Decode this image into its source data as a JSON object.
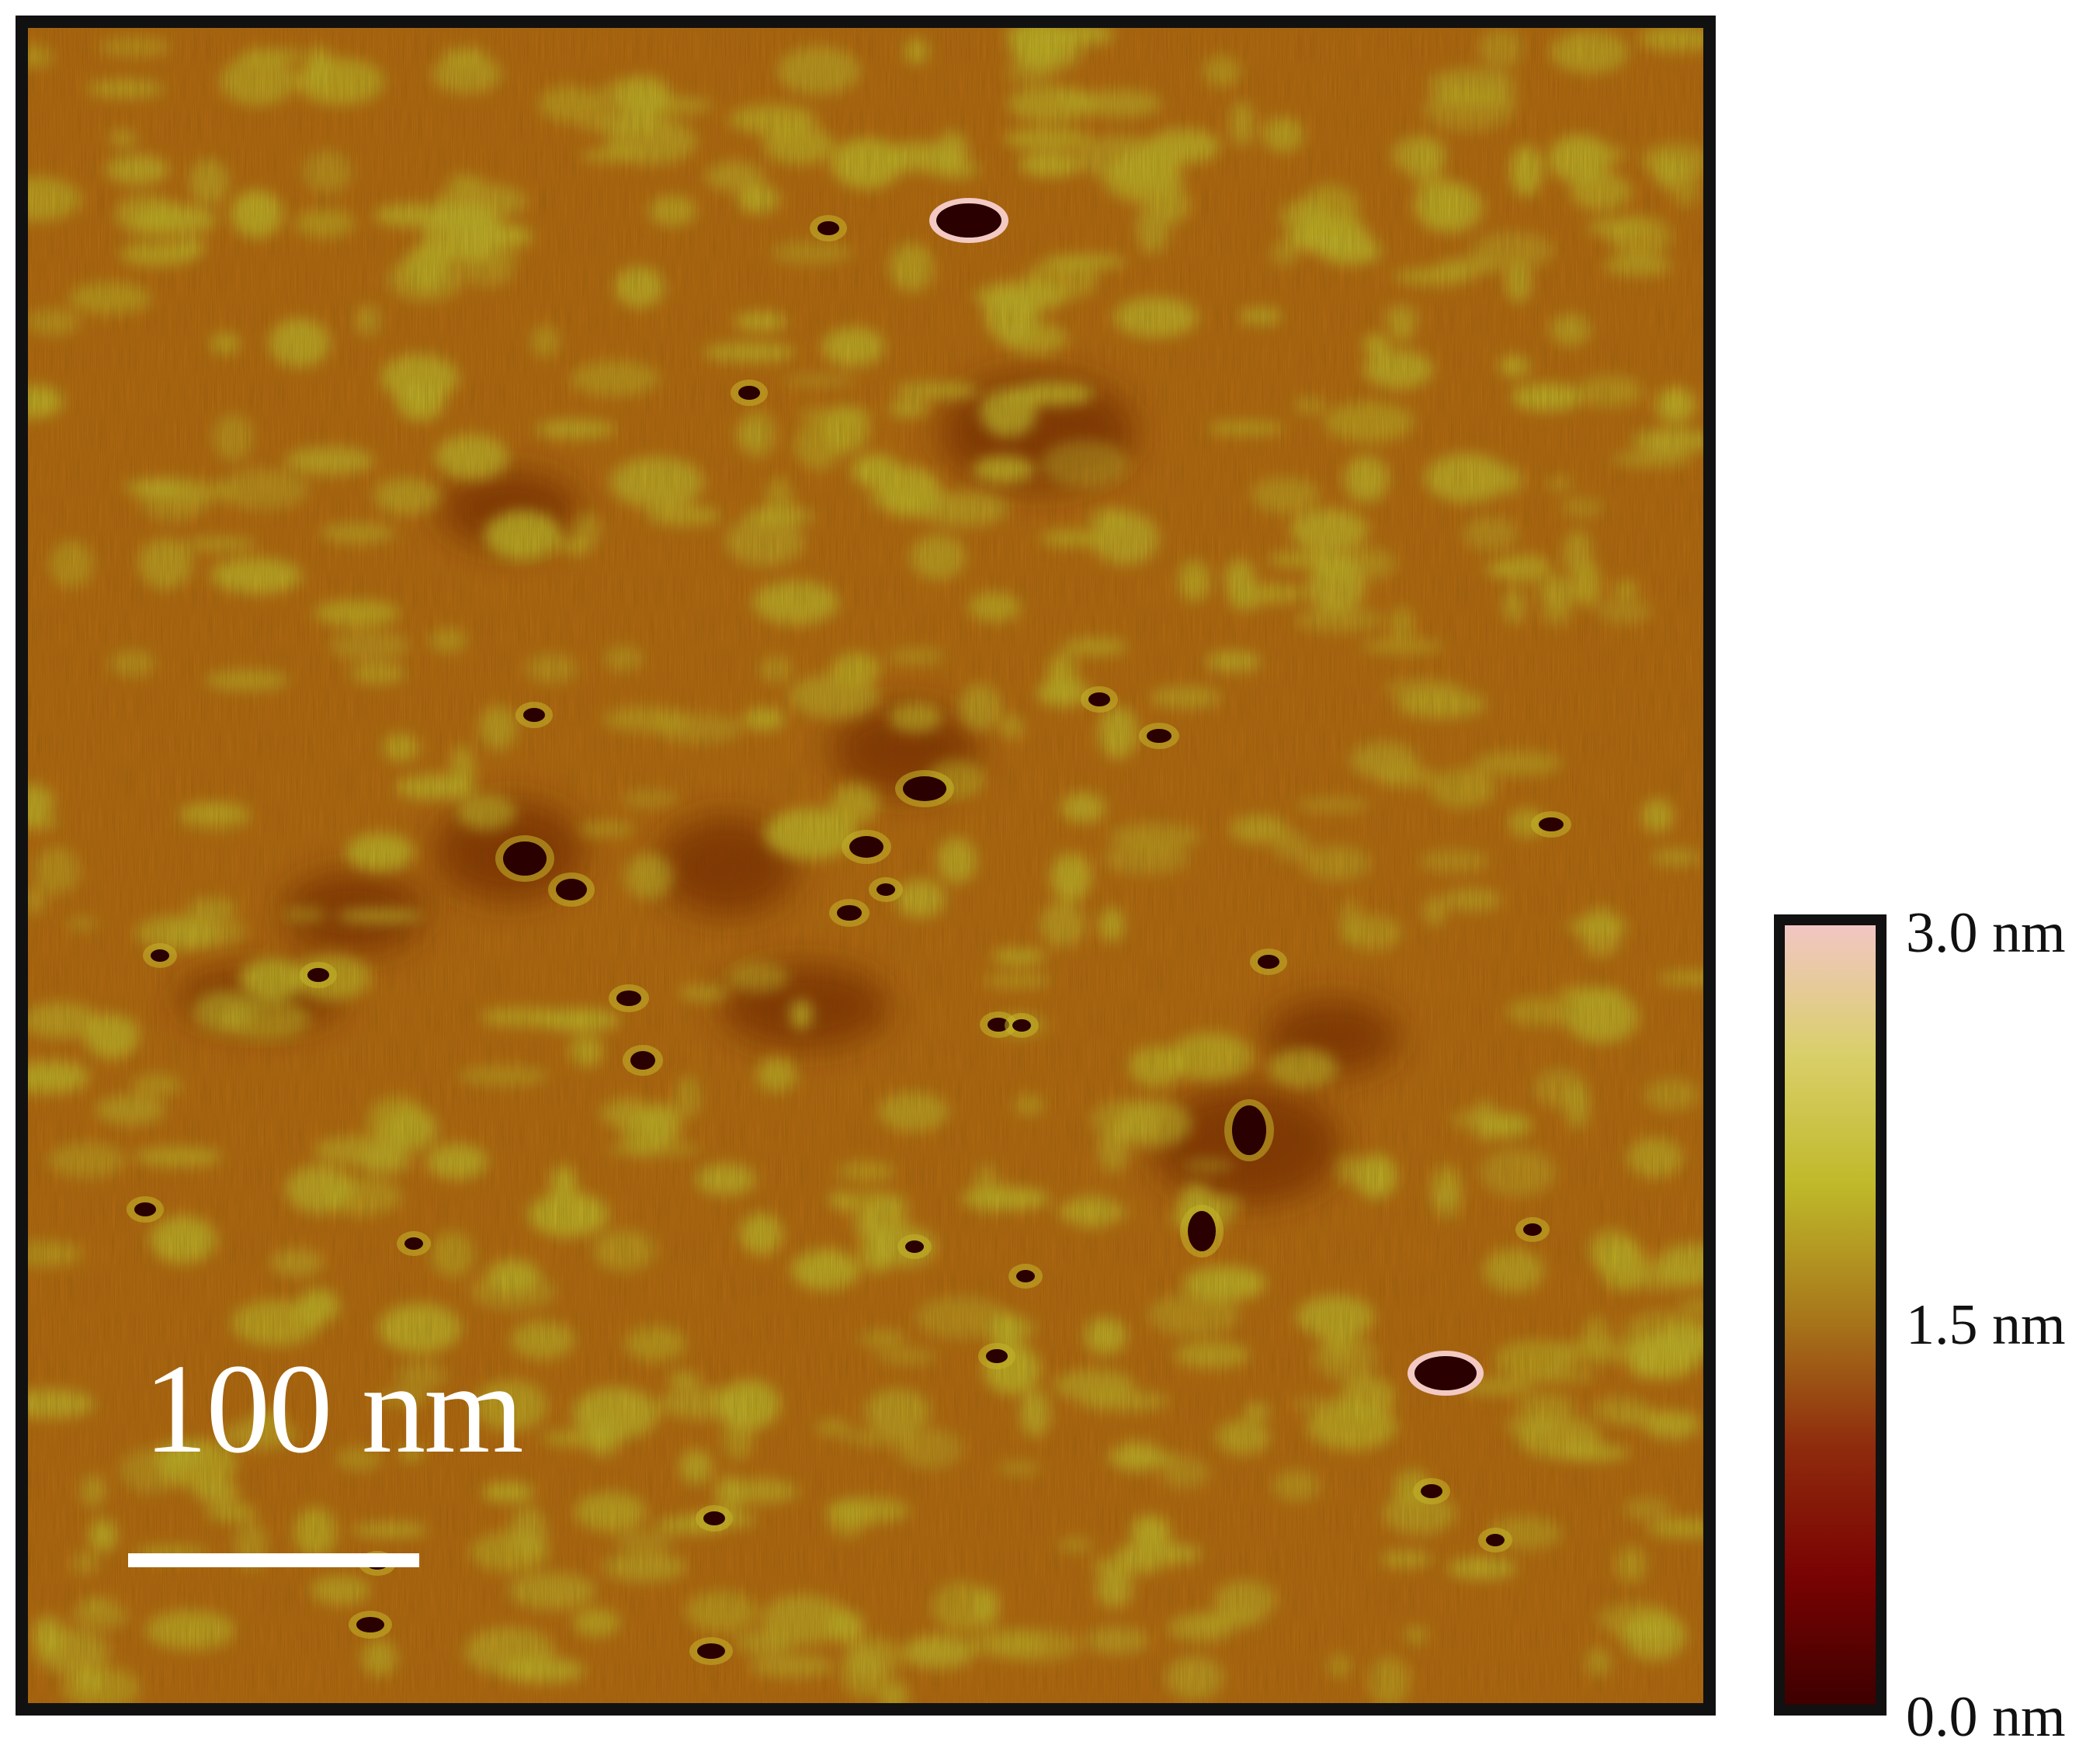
{
  "image": {
    "subject": "afm-height-map",
    "scale_bar": {
      "label": "100 nm"
    },
    "colorbar": {
      "tick_labels": [
        "3.0 nm",
        "1.5 nm",
        "0.0 nm"
      ],
      "colors": [
        "#f2c6c3",
        "#d9cf6a",
        "#bfb92a",
        "#a8781b",
        "#8f2c0d",
        "#7a0303",
        "#3e0000"
      ]
    },
    "surface_colors": {
      "base": "#b46a12",
      "high": "#c2b52a",
      "low": "#7a2a08",
      "pit": "#2a0000",
      "rim": "#f3c9c4"
    }
  }
}
